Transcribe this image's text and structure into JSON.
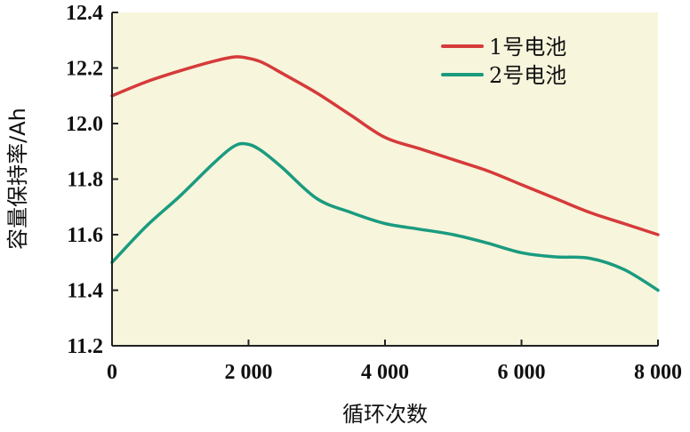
{
  "chart_data": {
    "type": "line",
    "xlabel": "循环次数",
    "ylabel": "容量保持率/Ah",
    "xlim": [
      0,
      8000
    ],
    "ylim": [
      11.2,
      12.4
    ],
    "x_ticks": [
      0,
      2000,
      4000,
      6000,
      8000
    ],
    "x_tick_labels": [
      "0",
      "2 000",
      "4 000",
      "6 000",
      "8 000"
    ],
    "y_ticks": [
      11.2,
      11.4,
      11.6,
      11.8,
      12.0,
      12.2,
      12.4
    ],
    "y_tick_labels": [
      "11.2",
      "11.4",
      "11.6",
      "11.8",
      "12.0",
      "12.2",
      "12.4"
    ],
    "grid": false,
    "legend_position": "top-right",
    "colors": {
      "plot_background": "#f7f5dc",
      "axis": "#222222"
    },
    "series": [
      {
        "name": "1号电池",
        "color": "#d63a3a",
        "x": [
          0,
          500,
          1000,
          1500,
          1800,
          2000,
          2200,
          2500,
          3000,
          3500,
          4000,
          4500,
          5000,
          5500,
          6000,
          6500,
          7000,
          7500,
          8000
        ],
        "y": [
          12.1,
          12.15,
          12.19,
          12.225,
          12.24,
          12.235,
          12.22,
          12.18,
          12.11,
          12.03,
          11.95,
          11.91,
          11.87,
          11.83,
          11.78,
          11.73,
          11.68,
          11.64,
          11.6
        ]
      },
      {
        "name": "2号电池",
        "color": "#1a9b7f",
        "x": [
          0,
          500,
          1000,
          1500,
          1800,
          2000,
          2200,
          2500,
          3000,
          3500,
          4000,
          4500,
          5000,
          5500,
          6000,
          6500,
          7000,
          7500,
          8000
        ],
        "y": [
          11.5,
          11.63,
          11.74,
          11.86,
          11.92,
          11.925,
          11.9,
          11.84,
          11.73,
          11.68,
          11.64,
          11.62,
          11.6,
          11.57,
          11.535,
          11.52,
          11.515,
          11.475,
          11.4
        ]
      }
    ]
  }
}
